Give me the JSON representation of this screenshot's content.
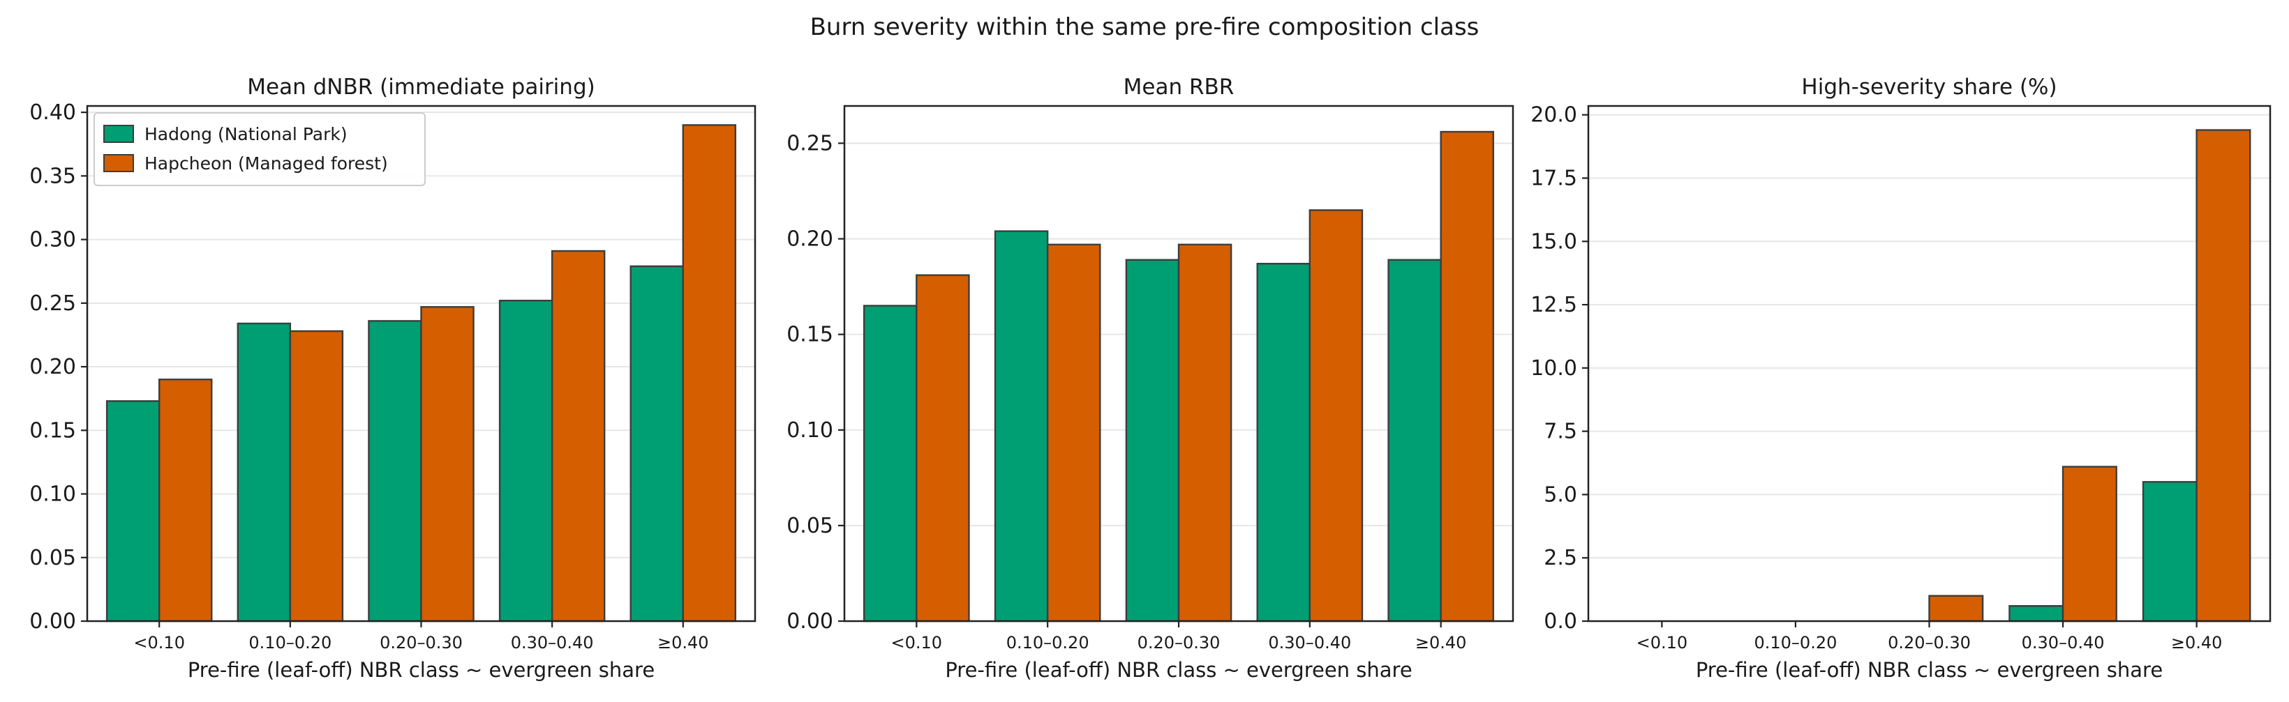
{
  "figure": {
    "title": "Burn severity within the same pre-fire composition class"
  },
  "legend": {
    "placement": "top-left",
    "entries": [
      {
        "name": "Hadong (National Park)",
        "color": "#009E73"
      },
      {
        "name": "Hapcheon (Managed forest)",
        "color": "#D55E00"
      }
    ]
  },
  "chart_data": [
    {
      "type": "bar",
      "title": "Mean dNBR (immediate pairing)",
      "xlabel": "Pre-fire (leaf-off) NBR class ~ evergreen share",
      "ylabel": "",
      "categories": [
        "<0.10",
        "0.10–0.20",
        "0.20–0.30",
        "0.30–0.40",
        "≥0.40"
      ],
      "ylim": [
        0,
        0.405
      ],
      "yticks": [
        "0.00",
        "0.05",
        "0.10",
        "0.15",
        "0.20",
        "0.25",
        "0.30",
        "0.35",
        "0.40"
      ],
      "grid": "y",
      "series": [
        {
          "name": "Hadong (National Park)",
          "color": "#009E73",
          "values": [
            0.173,
            0.234,
            0.236,
            0.252,
            0.279
          ]
        },
        {
          "name": "Hapcheon (Managed forest)",
          "color": "#D55E00",
          "values": [
            0.19,
            0.228,
            0.247,
            0.291,
            0.39
          ]
        }
      ]
    },
    {
      "type": "bar",
      "title": "Mean RBR",
      "xlabel": "Pre-fire (leaf-off) NBR class ~ evergreen share",
      "ylabel": "",
      "categories": [
        "<0.10",
        "0.10–0.20",
        "0.20–0.30",
        "0.30–0.40",
        "≥0.40"
      ],
      "ylim": [
        0,
        0.2695
      ],
      "yticks": [
        "0.00",
        "0.05",
        "0.10",
        "0.15",
        "0.20",
        "0.25"
      ],
      "grid": "y",
      "series": [
        {
          "name": "Hadong (National Park)",
          "color": "#009E73",
          "values": [
            0.165,
            0.204,
            0.189,
            0.187,
            0.189
          ]
        },
        {
          "name": "Hapcheon (Managed forest)",
          "color": "#D55E00",
          "values": [
            0.181,
            0.197,
            0.197,
            0.215,
            0.256
          ]
        }
      ]
    },
    {
      "type": "bar",
      "title": "High-severity share (%)",
      "xlabel": "Pre-fire (leaf-off) NBR class ~ evergreen share",
      "ylabel": "",
      "categories": [
        "<0.10",
        "0.10–0.20",
        "0.20–0.30",
        "0.30–0.40",
        "≥0.40"
      ],
      "ylim": [
        0,
        20.35
      ],
      "yticks": [
        "0.0",
        "2.5",
        "5.0",
        "7.5",
        "10.0",
        "12.5",
        "15.0",
        "17.5",
        "20.0"
      ],
      "grid": "y",
      "series": [
        {
          "name": "Hadong (National Park)",
          "color": "#009E73",
          "values": [
            0.0,
            0.0,
            0.0,
            0.6,
            5.5
          ]
        },
        {
          "name": "Hapcheon (Managed forest)",
          "color": "#D55E00",
          "values": [
            0.0,
            0.0,
            1.0,
            6.1,
            19.4
          ]
        }
      ]
    }
  ]
}
